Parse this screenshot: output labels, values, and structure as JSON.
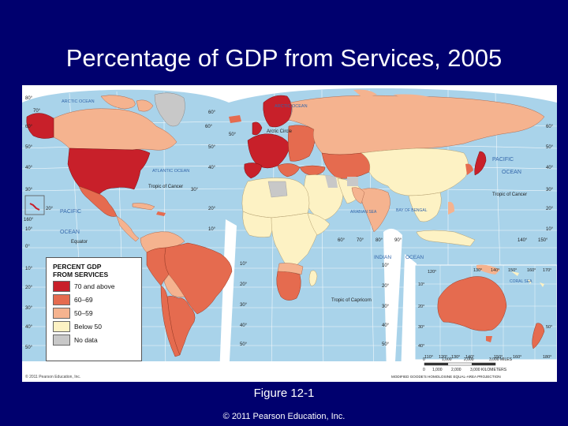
{
  "slide": {
    "title": "Percentage of GDP from Services, 2005",
    "caption": "Figure 12-1",
    "footer": "© 2011 Pearson Education, Inc."
  },
  "map": {
    "copyright": "© 2011 Pearson Education, Inc.",
    "projection": "MODIFIED GOODE'S HOMOLOSINE EQUAL-AREA PROJECTION",
    "ocean_labels": {
      "arctic_left": "ARCTIC OCEAN",
      "arctic_center": "ARCTIC OCEAN",
      "atlantic": "ATLANTIC OCEAN",
      "pacific_left": "PACIFIC",
      "pacific_left_2": "OCEAN",
      "pacific_right": "PACIFIC",
      "pacific_right_2": "OCEAN",
      "indian": "INDIAN",
      "indian_2": "OCEAN",
      "arabian_sea": "ARABIAN SEA",
      "bay_of_bengal": "BAY OF BENGAL",
      "coral_sea": "CORAL SEA"
    },
    "lines": {
      "arctic_circle": "Arctic Circle",
      "tropic_cancer_left": "Tropic of Cancer",
      "tropic_cancer_right": "Tropic of Cancer",
      "equator": "Equator",
      "tropic_capricorn": "Tropic of Capricorn"
    },
    "lat_labels_left": [
      "80°",
      "60°",
      "50°",
      "40°",
      "30°",
      "20°",
      "10°",
      "0°",
      "10°",
      "20°",
      "30°",
      "40°",
      "50°"
    ],
    "lat_labels_mid": [
      "60°",
      "50°",
      "40°",
      "30°",
      "20°",
      "10°"
    ],
    "lat_labels_right": [
      "60°",
      "50°",
      "40°",
      "30°",
      "20°",
      "10°"
    ],
    "lon_labels_top": [
      "70°",
      "60°",
      "50°"
    ],
    "lon_labels_bottom": [
      "60°",
      "70°",
      "80°",
      "90°",
      "140°",
      "150°"
    ],
    "oceania_lat": [
      "10°",
      "20°",
      "30°",
      "40°",
      "50°"
    ],
    "oceania_lon_top": [
      "120°",
      "130°",
      "140°",
      "150°",
      "160°",
      "170°"
    ],
    "oceania_lon_bottom": [
      "110°",
      "120°",
      "130°",
      "140°",
      "150°",
      "160°",
      "180°"
    ],
    "hawaii_label": "160°",
    "scale": {
      "miles": [
        "0",
        "1,000",
        "2,000",
        "3,000 MILES"
      ],
      "km": [
        "0",
        "1,000",
        "2,000",
        "3,000 KILOMETERS"
      ]
    }
  },
  "legend": {
    "title": "PERCENT GDP FROM SERVICES",
    "items": [
      {
        "label": "70 and above",
        "color": "#c8202a"
      },
      {
        "label": "60–69",
        "color": "#e56b4f"
      },
      {
        "label": "50–59",
        "color": "#f5b38f"
      },
      {
        "label": "Below 50",
        "color": "#fdf2c4"
      },
      {
        "label": "No data",
        "color": "#c8c8c8"
      }
    ]
  },
  "colors": {
    "background": "#00006e",
    "ocean": "#a9d3ea",
    "c70": "#c8202a",
    "c60": "#e56b4f",
    "c50": "#f5b38f",
    "cbelow": "#fdf2c4",
    "cnodata": "#c8c8c8"
  }
}
